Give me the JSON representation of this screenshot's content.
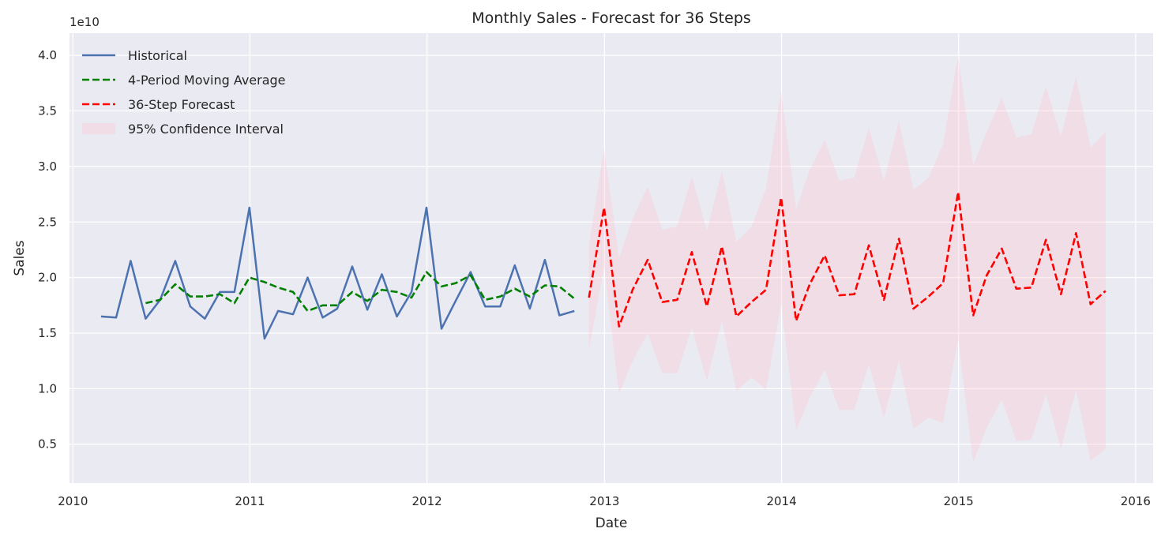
{
  "chart_data": {
    "type": "line",
    "title": "Monthly Sales - Forecast for 36 Steps",
    "xlabel": "Date",
    "ylabel": "Sales",
    "y_offset_label": "1e10",
    "x_axis": {
      "type": "date",
      "range": [
        "2009-12-25",
        "2016-02-06"
      ],
      "ticks": [
        "2010",
        "2011",
        "2012",
        "2013",
        "2014",
        "2015",
        "2016"
      ]
    },
    "y_axis": {
      "range": [
        0.15,
        4.2
      ],
      "ticks": [
        "0.5",
        "1.0",
        "1.5",
        "2.0",
        "2.5",
        "3.0",
        "3.5",
        "4.0"
      ]
    },
    "grid": true,
    "legend_position": "top-left",
    "series": [
      {
        "name": "Historical",
        "color": "#4c72b0",
        "style": "solid",
        "x": [
          "2010-02-28",
          "2010-03-31",
          "2010-04-30",
          "2010-05-31",
          "2010-06-30",
          "2010-07-31",
          "2010-08-31",
          "2010-09-30",
          "2010-10-31",
          "2010-11-30",
          "2010-12-31",
          "2011-01-31",
          "2011-02-28",
          "2011-03-31",
          "2011-04-30",
          "2011-05-31",
          "2011-06-30",
          "2011-07-31",
          "2011-08-31",
          "2011-09-30",
          "2011-10-31",
          "2011-11-30",
          "2011-12-31",
          "2012-01-31",
          "2012-02-29",
          "2012-03-31",
          "2012-04-30",
          "2012-05-31",
          "2012-06-30",
          "2012-07-31",
          "2012-08-31",
          "2012-09-30",
          "2012-10-31"
        ],
        "y": [
          1.65,
          1.64,
          2.15,
          1.63,
          1.8,
          2.15,
          1.74,
          1.63,
          1.87,
          1.87,
          2.63,
          1.45,
          1.7,
          1.67,
          2.0,
          1.64,
          1.72,
          2.1,
          1.71,
          2.03,
          1.65,
          1.87,
          2.63,
          1.54,
          1.79,
          2.05,
          1.74,
          1.74,
          2.11,
          1.72,
          2.16,
          1.66,
          1.7
        ]
      },
      {
        "name": "4-Period Moving Average",
        "color": "#008000",
        "style": "dashed",
        "x": [
          "2010-05-31",
          "2010-06-30",
          "2010-07-31",
          "2010-08-31",
          "2010-09-30",
          "2010-10-31",
          "2010-11-30",
          "2010-12-31",
          "2011-01-31",
          "2011-02-28",
          "2011-03-31",
          "2011-04-30",
          "2011-05-31",
          "2011-06-30",
          "2011-07-31",
          "2011-08-31",
          "2011-09-30",
          "2011-10-31",
          "2011-11-30",
          "2011-12-31",
          "2012-01-31",
          "2012-02-29",
          "2012-03-31",
          "2012-04-30",
          "2012-05-31",
          "2012-06-30",
          "2012-07-31",
          "2012-08-31",
          "2012-09-30",
          "2012-10-31"
        ],
        "y": [
          1.77,
          1.8,
          1.94,
          1.83,
          1.83,
          1.85,
          1.77,
          2.0,
          1.96,
          1.91,
          1.87,
          1.7,
          1.75,
          1.75,
          1.87,
          1.79,
          1.89,
          1.87,
          1.82,
          2.05,
          1.92,
          1.95,
          2.02,
          1.8,
          1.83,
          1.9,
          1.83,
          1.93,
          1.92,
          1.81
        ]
      },
      {
        "name": "36-Step Forecast",
        "color": "#ff0000",
        "style": "dashed",
        "x": [
          "2012-11-30",
          "2012-12-31",
          "2013-01-31",
          "2013-02-28",
          "2013-03-31",
          "2013-04-30",
          "2013-05-31",
          "2013-06-30",
          "2013-07-31",
          "2013-08-31",
          "2013-09-30",
          "2013-10-31",
          "2013-11-30",
          "2013-12-31",
          "2014-01-31",
          "2014-02-28",
          "2014-03-31",
          "2014-04-30",
          "2014-05-31",
          "2014-06-30",
          "2014-07-31",
          "2014-08-31",
          "2014-09-30",
          "2014-10-31",
          "2014-11-30",
          "2014-12-31",
          "2015-01-31",
          "2015-02-28",
          "2015-03-31",
          "2015-04-30",
          "2015-05-31",
          "2015-06-30",
          "2015-07-31",
          "2015-08-31",
          "2015-09-30",
          "2015-10-31"
        ],
        "y": [
          1.82,
          2.63,
          1.56,
          1.89,
          2.16,
          1.78,
          1.8,
          2.23,
          1.74,
          2.28,
          1.65,
          1.78,
          1.89,
          2.72,
          1.61,
          1.94,
          2.2,
          1.84,
          1.85,
          2.29,
          1.8,
          2.35,
          1.72,
          1.83,
          1.95,
          2.77,
          1.66,
          2.02,
          2.26,
          1.9,
          1.91,
          2.34,
          1.85,
          2.4,
          1.76,
          1.88
        ]
      }
    ],
    "confidence_interval": {
      "name": "95% Confidence Interval",
      "color": "#ffc0cb",
      "lower": [
        1.35,
        2.1,
        0.95,
        1.25,
        1.5,
        1.14,
        1.14,
        1.55,
        1.07,
        1.61,
        0.98,
        1.1,
        0.99,
        1.76,
        0.63,
        0.92,
        1.17,
        0.81,
        0.81,
        1.22,
        0.74,
        1.25,
        0.64,
        0.74,
        0.69,
        1.45,
        0.34,
        0.65,
        0.9,
        0.53,
        0.54,
        0.95,
        0.46,
        0.99,
        0.35,
        0.46
      ],
      "upper": [
        2.29,
        3.16,
        2.18,
        2.53,
        2.82,
        2.43,
        2.46,
        2.91,
        2.42,
        2.96,
        2.32,
        2.46,
        2.8,
        3.68,
        2.61,
        2.97,
        3.24,
        2.87,
        2.9,
        3.35,
        2.87,
        3.41,
        2.79,
        2.9,
        3.2,
        4.0,
        3.01,
        3.31,
        3.62,
        3.26,
        3.29,
        3.72,
        3.27,
        3.81,
        3.17,
        3.31
      ]
    }
  }
}
